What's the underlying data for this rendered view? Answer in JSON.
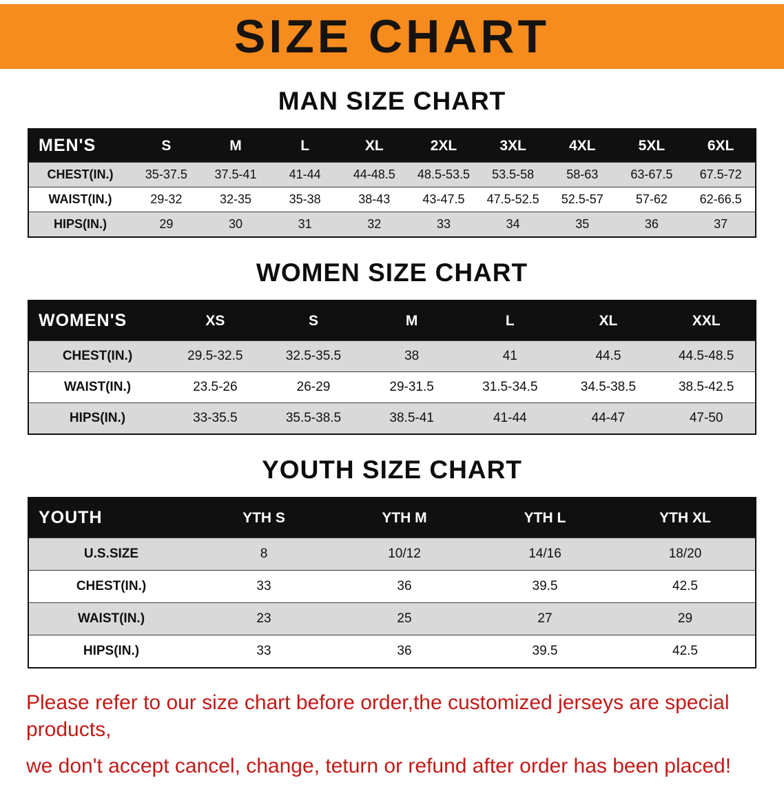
{
  "banner": {
    "title": "SIZE CHART"
  },
  "sections": [
    {
      "heading": "MAN SIZE CHART",
      "table": {
        "header_label": "MEN'S",
        "columns": [
          "S",
          "M",
          "L",
          "XL",
          "2XL",
          "3XL",
          "4XL",
          "5XL",
          "6XL"
        ],
        "rows": [
          {
            "label": "CHEST(IN.)",
            "values": [
              "35-37.5",
              "37.5-41",
              "41-44",
              "44-48.5",
              "48.5-53.5",
              "53.5-58",
              "58-63",
              "63-67.5",
              "67.5-72"
            ]
          },
          {
            "label": "WAIST(IN.)",
            "values": [
              "29-32",
              "32-35",
              "35-38",
              "38-43",
              "43-47.5",
              "47.5-52.5",
              "52.5-57",
              "57-62",
              "62-66.5"
            ]
          },
          {
            "label": "HIPS(IN.)",
            "values": [
              "29",
              "30",
              "31",
              "32",
              "33",
              "34",
              "35",
              "36",
              "37"
            ]
          }
        ]
      }
    },
    {
      "heading": "WOMEN SIZE CHART",
      "table": {
        "header_label": "WOMEN'S",
        "columns": [
          "XS",
          "S",
          "M",
          "L",
          "XL",
          "XXL"
        ],
        "rows": [
          {
            "label": "CHEST(IN.)",
            "values": [
              "29.5-32.5",
              "32.5-35.5",
              "38",
              "41",
              "44.5",
              "44.5-48.5"
            ]
          },
          {
            "label": "WAIST(IN.)",
            "values": [
              "23.5-26",
              "26-29",
              "29-31.5",
              "31.5-34.5",
              "34.5-38.5",
              "38.5-42.5"
            ]
          },
          {
            "label": "HIPS(IN.)",
            "values": [
              "33-35.5",
              "35.5-38.5",
              "38.5-41",
              "41-44",
              "44-47",
              "47-50"
            ]
          }
        ]
      }
    },
    {
      "heading": "YOUTH SIZE CHART",
      "table": {
        "header_label": "YOUTH",
        "columns": [
          "YTH S",
          "YTH M",
          "YTH L",
          "YTH XL"
        ],
        "rows": [
          {
            "label": "U.S.SIZE",
            "values": [
              "8",
              "10/12",
              "14/16",
              "18/20"
            ]
          },
          {
            "label": "CHEST(IN.)",
            "values": [
              "33",
              "36",
              "39.5",
              "42.5"
            ]
          },
          {
            "label": "WAIST(IN.)",
            "values": [
              "23",
              "25",
              "27",
              "29"
            ]
          },
          {
            "label": "HIPS(IN.)",
            "values": [
              "33",
              "36",
              "39.5",
              "42.5"
            ]
          }
        ]
      }
    }
  ],
  "footer": {
    "line1": "Please refer to our size chart before order,the customized jerseys are special products,",
    "line2": "we don't accept cancel, change, teturn or refund after order has been placed!"
  },
  "colors": {
    "banner_orange": "#f68b1e",
    "table_header_black": "#101010",
    "row_gray": "#d9d9d9",
    "notice_red": "#c21a17"
  }
}
